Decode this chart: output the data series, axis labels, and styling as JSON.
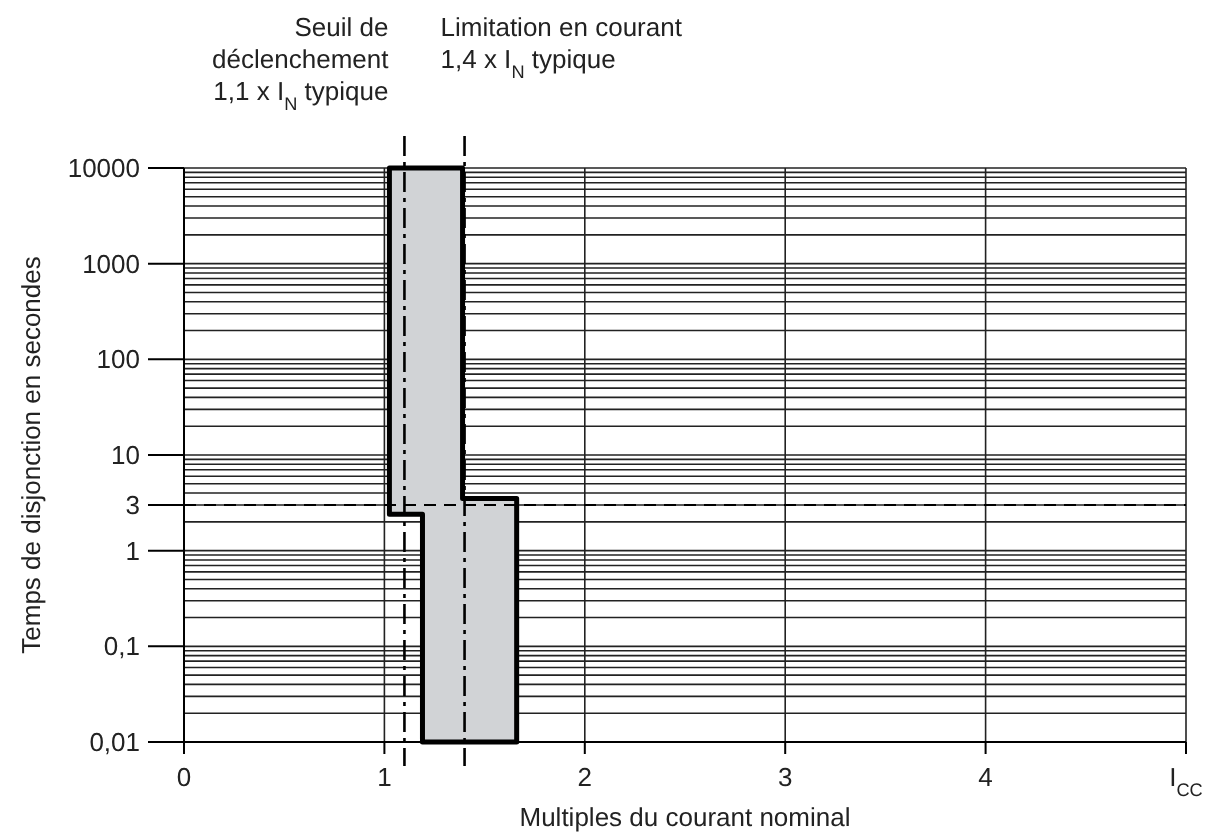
{
  "chart_data": {
    "type": "area",
    "xlabel": "Multiples du courant nominal",
    "ylabel": "Temps de disjonction en secondes",
    "log": "y",
    "grid": true,
    "xlim": [
      0,
      5
    ],
    "xticks": [
      0,
      1,
      2,
      3,
      4,
      {
        "value": 5,
        "label": "I$_{CC}$"
      }
    ],
    "ylim": [
      0.01,
      10000
    ],
    "yticks": [
      {
        "value": 0.01,
        "label": "0,01"
      },
      {
        "value": 0.1,
        "label": "0,1"
      },
      1,
      3,
      10,
      100,
      1000,
      10000
    ],
    "series": [
      {
        "color": "#d1d3d6",
        "x": [
          1.025,
          1.025,
          1.19,
          1.19,
          1.66,
          1.66,
          1.39,
          1.39,
          1.025
        ],
        "values": [
          10000,
          2.4,
          2.4,
          0.01,
          0.01,
          3.5,
          3.5,
          10000,
          10000
        ]
      }
    ],
    "ref_lines": [
      {
        "axis": "x",
        "value": 1.1,
        "label": "Seuil de\ndéclenchement\n1,1 x I$_{N}$ typique",
        "line_style": "dashdot"
      },
      {
        "axis": "x",
        "value": 1.4,
        "label": "Limitation en courant\n1,4 x I$_{N}$ typique",
        "line_style": "dashdot"
      },
      {
        "axis": "y",
        "value": 3,
        "line_style": "dashed"
      }
    ]
  }
}
